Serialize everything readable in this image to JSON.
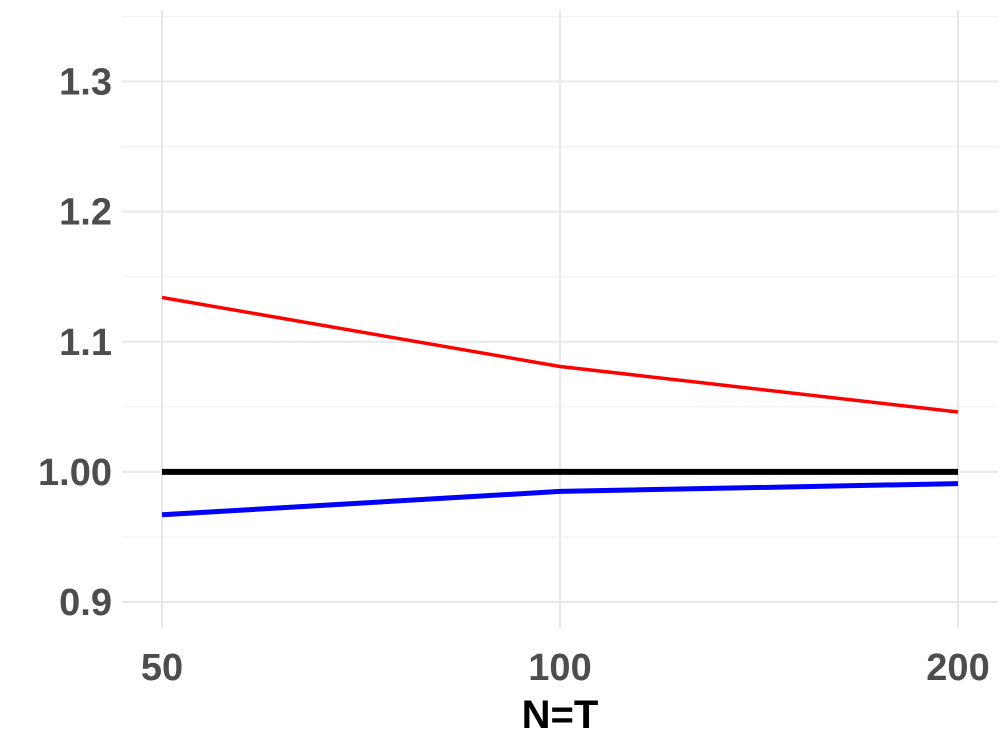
{
  "chart_data": {
    "type": "line",
    "title": "",
    "xlabel": "N=T",
    "ylabel": "",
    "x": [
      50,
      100,
      200
    ],
    "x_tick_labels": [
      "50",
      "100",
      "200"
    ],
    "y_ticks": [
      0.9,
      1.0,
      1.1,
      1.2,
      1.3
    ],
    "y_tick_labels": [
      "0.9",
      "1.00",
      "1.1",
      "1.2",
      "1.3"
    ],
    "ylim": [
      0.88,
      1.355
    ],
    "x_scale": "log",
    "grid": true,
    "legend": "none",
    "series": [
      {
        "color": "#ff0000",
        "values": [
          1.134,
          1.081,
          1.046
        ]
      },
      {
        "color": "#000000",
        "values": [
          1.0,
          1.0,
          1.0
        ]
      },
      {
        "color": "#0000ff",
        "values": [
          0.967,
          0.985,
          0.991
        ]
      }
    ]
  }
}
